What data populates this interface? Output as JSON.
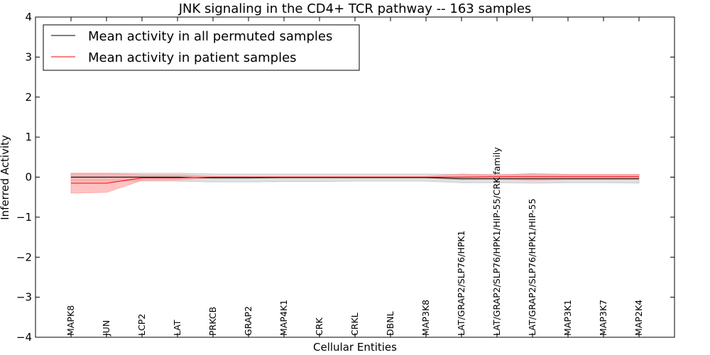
{
  "chart_data": {
    "type": "line",
    "title": "JNK signaling in the CD4+ TCR pathway -- 163 samples",
    "xlabel": "Cellular Entities",
    "ylabel": "Inferred Activity",
    "ylim": [
      -4,
      4
    ],
    "yticks": [
      4,
      3,
      2,
      1,
      0,
      -1,
      -2,
      -3,
      -4
    ],
    "ytick_labels": [
      "4",
      "3",
      "2",
      "1",
      "0",
      "−1",
      "−2",
      "−3",
      "−4"
    ],
    "legend_position": "top-left",
    "categories": [
      "MAPK8",
      "JUN",
      "LCP2",
      "LAT",
      "PRKCB",
      "GRAP2",
      "MAP4K1",
      "CRK",
      "CRKL",
      "DBNL",
      "MAP3K8",
      "LAT/GRAP2/SLP76/HPK1",
      "LAT/GRAP2/SLP76/HPK1/HIP-55/CRK family",
      "LAT/GRAP2/SLP76/HPK1/HIP-55",
      "MAP3K1",
      "MAP3K7",
      "MAP2K4"
    ],
    "series": [
      {
        "name": "Mean activity in all permuted samples",
        "color": "#000000",
        "band_color": "#bbbbbb",
        "values": [
          0.0,
          0.0,
          0.0,
          0.0,
          -0.02,
          -0.02,
          -0.01,
          -0.01,
          -0.01,
          -0.01,
          -0.01,
          -0.04,
          -0.04,
          -0.04,
          -0.04,
          -0.04,
          -0.04
        ],
        "upper": [
          0.1,
          0.1,
          0.1,
          0.1,
          0.08,
          0.08,
          0.08,
          0.08,
          0.08,
          0.08,
          0.08,
          0.07,
          0.07,
          0.07,
          0.07,
          0.07,
          0.07
        ],
        "lower": [
          -0.1,
          -0.1,
          -0.1,
          -0.1,
          -0.12,
          -0.12,
          -0.11,
          -0.11,
          -0.1,
          -0.1,
          -0.1,
          -0.14,
          -0.14,
          -0.15,
          -0.14,
          -0.14,
          -0.15
        ]
      },
      {
        "name": "Mean activity in patient samples",
        "color": "#ff0000",
        "band_color": "#ff9999",
        "values": [
          -0.15,
          -0.15,
          -0.02,
          -0.02,
          0.0,
          0.0,
          0.0,
          0.0,
          0.0,
          0.0,
          0.0,
          0.0,
          0.01,
          0.01,
          0.01,
          0.01,
          0.01
        ],
        "upper": [
          0.1,
          0.1,
          0.06,
          0.06,
          0.02,
          0.02,
          0.02,
          0.02,
          0.02,
          0.02,
          0.02,
          0.08,
          0.06,
          0.09,
          0.07,
          0.07,
          0.07
        ],
        "lower": [
          -0.4,
          -0.38,
          -0.08,
          -0.07,
          -0.02,
          -0.02,
          -0.02,
          -0.02,
          -0.02,
          -0.02,
          -0.02,
          -0.06,
          -0.05,
          -0.08,
          -0.06,
          -0.06,
          -0.06
        ]
      }
    ]
  }
}
